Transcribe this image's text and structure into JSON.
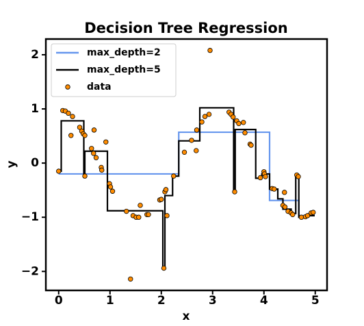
{
  "chart_data": {
    "type": "line",
    "title": "Decision Tree Regression",
    "x_label": "x",
    "y_label": "y",
    "xlim": [
      -0.25,
      5.23
    ],
    "ylim": [
      -2.35,
      2.29
    ],
    "xticks": [
      0,
      1,
      2,
      3,
      4,
      5
    ],
    "yticks": [
      {
        "value": -2,
        "label": "−2"
      },
      {
        "value": -1,
        "label": "−1"
      },
      0,
      1,
      2
    ],
    "legend": "upper left",
    "series": [
      {
        "name": "max_depth=2",
        "type": "line",
        "color": "#6495ed",
        "x": [
          0,
          2.34,
          2.34,
          4.11,
          4.11,
          4.68,
          4.68,
          4.99
        ],
        "values": [
          -0.2,
          -0.2,
          0.57,
          0.57,
          -0.69,
          -0.69,
          -0.97,
          -0.97
        ]
      },
      {
        "name": "max_depth=5",
        "type": "line",
        "color": "#000000",
        "x": [
          0,
          0.05,
          0.05,
          0.49,
          0.49,
          0.51,
          0.51,
          0.95,
          0.95,
          2.03,
          2.03,
          2.07,
          2.07,
          2.22,
          2.22,
          2.34,
          2.34,
          2.75,
          2.75,
          3.41,
          3.41,
          3.44,
          3.44,
          3.84,
          3.84,
          3.96,
          3.96,
          4.11,
          4.11,
          4.27,
          4.27,
          4.37,
          4.37,
          4.53,
          4.53,
          4.62,
          4.62,
          4.68,
          4.68,
          4.8,
          4.8,
          4.99
        ],
        "values": [
          -0.15,
          -0.15,
          0.78,
          0.78,
          -0.24,
          -0.24,
          0.22,
          0.22,
          -0.88,
          -0.88,
          -1.94,
          -1.94,
          -0.6,
          -0.6,
          -0.24,
          -0.24,
          0.41,
          0.41,
          1.02,
          1.02,
          -0.53,
          -0.53,
          0.62,
          0.62,
          -0.28,
          -0.28,
          -0.2,
          -0.2,
          -0.48,
          -0.48,
          -0.66,
          -0.66,
          -0.85,
          -0.85,
          -0.93,
          -0.93,
          -0.22,
          -0.22,
          -1.0,
          -1.0,
          -0.97,
          -0.97
        ]
      },
      {
        "name": "data",
        "type": "scatter",
        "color": "#ff8c00",
        "x": [
          0,
          0.08,
          0.13,
          0.19,
          0.27,
          0.24,
          0.41,
          0.45,
          0.48,
          0.51,
          0.51,
          0.64,
          0.68,
          0.69,
          0.73,
          0.83,
          0.84,
          0.92,
          0.99,
          1.01,
          1.05,
          1.32,
          1.4,
          1.45,
          1.51,
          1.56,
          1.59,
          1.72,
          1.75,
          1.97,
          2.0,
          2.05,
          2.07,
          2.09,
          2.11,
          2.24,
          2.45,
          2.59,
          2.68,
          2.69,
          2.79,
          2.85,
          2.95,
          2.93,
          3.32,
          3.36,
          3.4,
          3.43,
          3.47,
          3.51,
          3.6,
          3.63,
          3.73,
          3.75,
          3.93,
          4.0,
          4.01,
          4.03,
          4.16,
          4.2,
          4.37,
          4.4,
          4.41,
          4.47,
          4.53,
          4.56,
          4.64,
          4.67,
          4.73,
          4.81,
          4.85,
          4.92,
          4.96
        ],
        "values": [
          -0.15,
          0.97,
          0.96,
          0.92,
          0.86,
          0.51,
          0.66,
          0.59,
          0.54,
          0.51,
          -0.24,
          0.27,
          0.18,
          0.61,
          0.1,
          -0.08,
          -0.13,
          0.39,
          -0.38,
          -0.44,
          -0.52,
          -0.89,
          -2.14,
          -0.97,
          -1.0,
          -1.0,
          -0.78,
          -0.95,
          -0.95,
          -0.68,
          -0.67,
          -1.94,
          -0.53,
          -0.49,
          -0.97,
          -0.24,
          0.2,
          0.42,
          0.23,
          0.61,
          0.76,
          0.86,
          2.08,
          0.9,
          0.94,
          0.9,
          0.85,
          -0.53,
          0.78,
          0.73,
          0.75,
          0.56,
          0.35,
          0.33,
          -0.27,
          -0.16,
          -0.2,
          -0.25,
          -0.47,
          -0.48,
          -0.78,
          -0.54,
          -0.81,
          -0.89,
          -0.92,
          -0.95,
          -0.22,
          -0.25,
          -1.0,
          -0.99,
          -0.97,
          -0.92,
          -0.91
        ]
      }
    ]
  }
}
